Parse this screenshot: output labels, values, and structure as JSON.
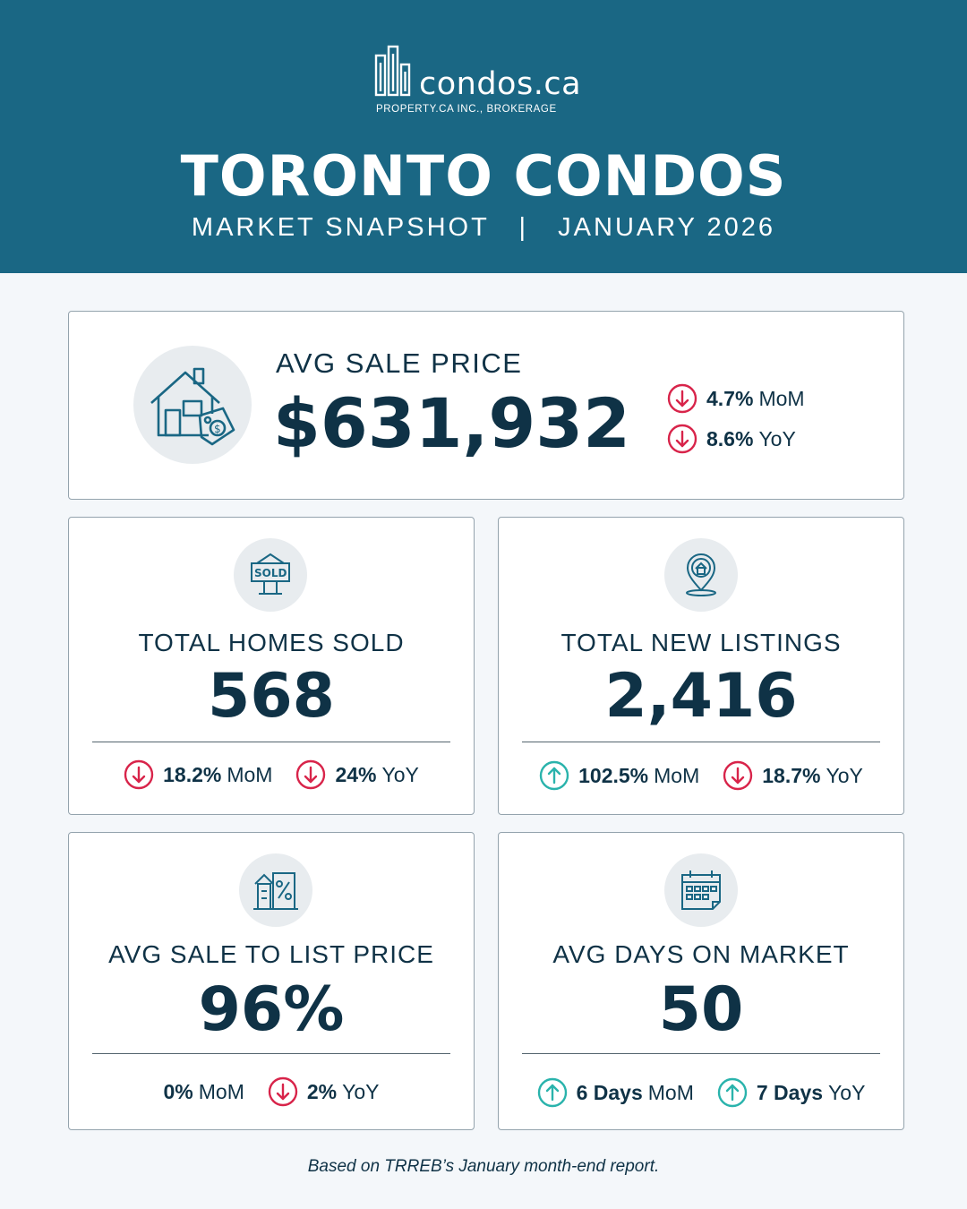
{
  "brand": {
    "name": "condos.ca",
    "sub": "PROPERTY.CA INC., BROKERAGE"
  },
  "title": "TORONTO CONDOS",
  "subtitle": "MARKET SNAPSHOT   |   JANUARY 2026",
  "colors": {
    "header_bg": "#1a6784",
    "down": "#d8244a",
    "up": "#2ab3ac",
    "text": "#0f3246"
  },
  "avg_sale_price": {
    "label": "AVG SALE PRICE",
    "value": "$631,932",
    "icon": "house-price-tag-icon",
    "stats": [
      {
        "value": "4.7%",
        "period": "MoM",
        "direction": "down"
      },
      {
        "value": "8.6%",
        "period": "YoY",
        "direction": "down"
      }
    ]
  },
  "homes_sold": {
    "label": "TOTAL HOMES SOLD",
    "value": "568",
    "icon": "sold-sign-icon",
    "stats": [
      {
        "value": "18.2%",
        "period": "MoM",
        "direction": "down"
      },
      {
        "value": "24%",
        "period": "YoY",
        "direction": "down"
      }
    ]
  },
  "new_listings": {
    "label": "TOTAL NEW LISTINGS",
    "value": "2,416",
    "icon": "house-location-pin-icon",
    "stats": [
      {
        "value": "102.5%",
        "period": "MoM",
        "direction": "up"
      },
      {
        "value": "18.7%",
        "period": "YoY",
        "direction": "down"
      }
    ]
  },
  "sale_to_list": {
    "label": "AVG SALE TO LIST PRICE",
    "value": "96%",
    "icon": "building-percent-icon",
    "stats": [
      {
        "value": "0%",
        "period": "MoM",
        "direction": "none"
      },
      {
        "value": "2%",
        "period": "YoY",
        "direction": "down"
      }
    ]
  },
  "days_on_market": {
    "label": "AVG DAYS ON MARKET",
    "value": "50",
    "icon": "calendar-icon",
    "stats": [
      {
        "value": "6 Days",
        "period": "MoM",
        "direction": "up"
      },
      {
        "value": "7 Days",
        "period": "YoY",
        "direction": "up"
      }
    ]
  },
  "footer": "Based on TRREB’s January month-end report."
}
